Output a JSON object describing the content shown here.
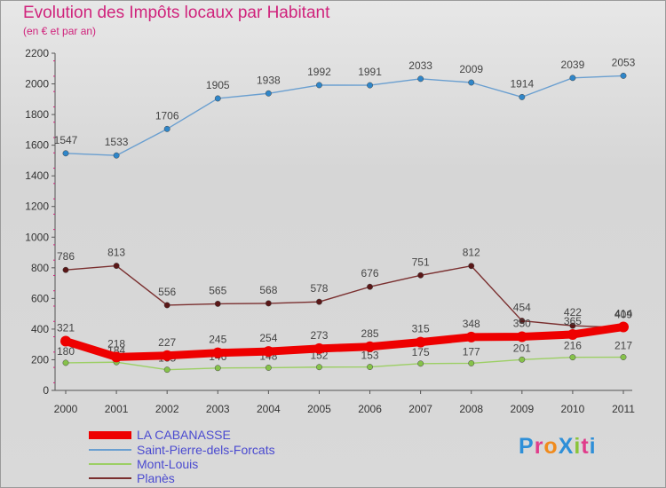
{
  "title": "Evolution des Impôts locaux par Habitant",
  "subtitle": "(en € et par an)",
  "brand": {
    "text": "ProXiti",
    "letter_colors": [
      "#2e8fd8",
      "#e03c8b",
      "#f08a1c",
      "#2e8fd8",
      "#8ac43a",
      "#e03c8b",
      "#2e8fd8"
    ]
  },
  "chart_data": {
    "type": "line",
    "x": [
      "2000",
      "2001",
      "2002",
      "2003",
      "2004",
      "2005",
      "2006",
      "2007",
      "2008",
      "2009",
      "2010",
      "2011"
    ],
    "y_ticks": [
      "0",
      "200",
      "400",
      "600",
      "800",
      "1000",
      "1200",
      "1400",
      "1600",
      "1800",
      "2000",
      "2200"
    ],
    "ylim": [
      0,
      2200
    ],
    "grid": false,
    "legend_position": "bottom-left",
    "series": [
      {
        "name": "Saint-Pierre-dels-Forcats",
        "color": "#6a9fd0",
        "marker": "#2f86c9",
        "values": [
          1547,
          1533,
          1706,
          1905,
          1938,
          1992,
          1991,
          2033,
          2009,
          1914,
          2039,
          2053
        ],
        "labels": [
          "1547",
          "1533",
          "1706",
          "1905",
          "1938",
          "1992",
          "1991",
          "2033",
          "2009",
          "1914",
          "2039",
          "2053"
        ]
      },
      {
        "name": "Planès",
        "color": "#7a2f2f",
        "marker": "#5a1717",
        "values": [
          786,
          813,
          556,
          565,
          568,
          578,
          676,
          751,
          812,
          454,
          422,
          409
        ],
        "labels": [
          "786",
          "813",
          "556",
          "565",
          "568",
          "578",
          "676",
          "751",
          "812",
          "454",
          "422",
          "409"
        ]
      },
      {
        "name": "Mont-Louis",
        "color": "#9ccf64",
        "marker": "#86c24a",
        "values": [
          180,
          184,
          135,
          146,
          148,
          152,
          153,
          175,
          177,
          201,
          216,
          217
        ],
        "labels": [
          "180",
          "184",
          "135",
          "146",
          "148",
          "152",
          "153",
          "175",
          "177",
          "201",
          "216",
          "217"
        ]
      },
      {
        "name": "LA CABANASSE",
        "color": "#ee0000",
        "marker": "#ee0000",
        "values": [
          321,
          218,
          227,
          245,
          254,
          273,
          285,
          315,
          348,
          350,
          365,
          414
        ],
        "labels": [
          "321",
          "218",
          "227",
          "245",
          "254",
          "273",
          "285",
          "315",
          "348",
          "350",
          "365",
          "414"
        ]
      }
    ]
  },
  "legend": [
    {
      "label": "LA CABANASSE",
      "color": "#ee0000",
      "thick": true
    },
    {
      "label": "Saint-Pierre-dels-Forcats",
      "color": "#6a9fd0",
      "thick": false
    },
    {
      "label": "Mont-Louis",
      "color": "#9ccf64",
      "thick": false
    },
    {
      "label": "Planès",
      "color": "#7a2f2f",
      "thick": false
    }
  ]
}
